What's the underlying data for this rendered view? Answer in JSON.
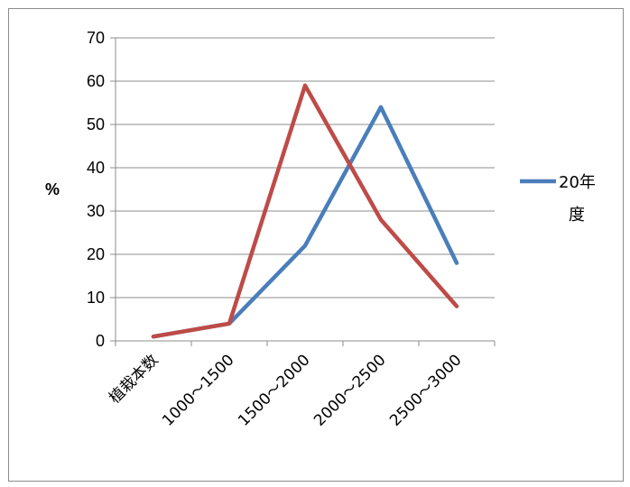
{
  "chart_data": {
    "type": "line",
    "title": "",
    "xlabel": "",
    "ylabel": "%",
    "ylim": [
      0,
      70
    ],
    "yticks": [
      0,
      10,
      20,
      30,
      40,
      50,
      60,
      70
    ],
    "grid": true,
    "legend_position": "right",
    "categories": [
      "植栽本数",
      "1000～1500",
      "1500～2000",
      "2000～2500",
      "2500～3000"
    ],
    "series": [
      {
        "name": "20年度",
        "color": "#4a7ebb",
        "values": [
          1,
          4,
          22,
          54,
          18
        ]
      },
      {
        "color": "#be4b48",
        "values": [
          1,
          4,
          59,
          28,
          8
        ]
      }
    ]
  }
}
